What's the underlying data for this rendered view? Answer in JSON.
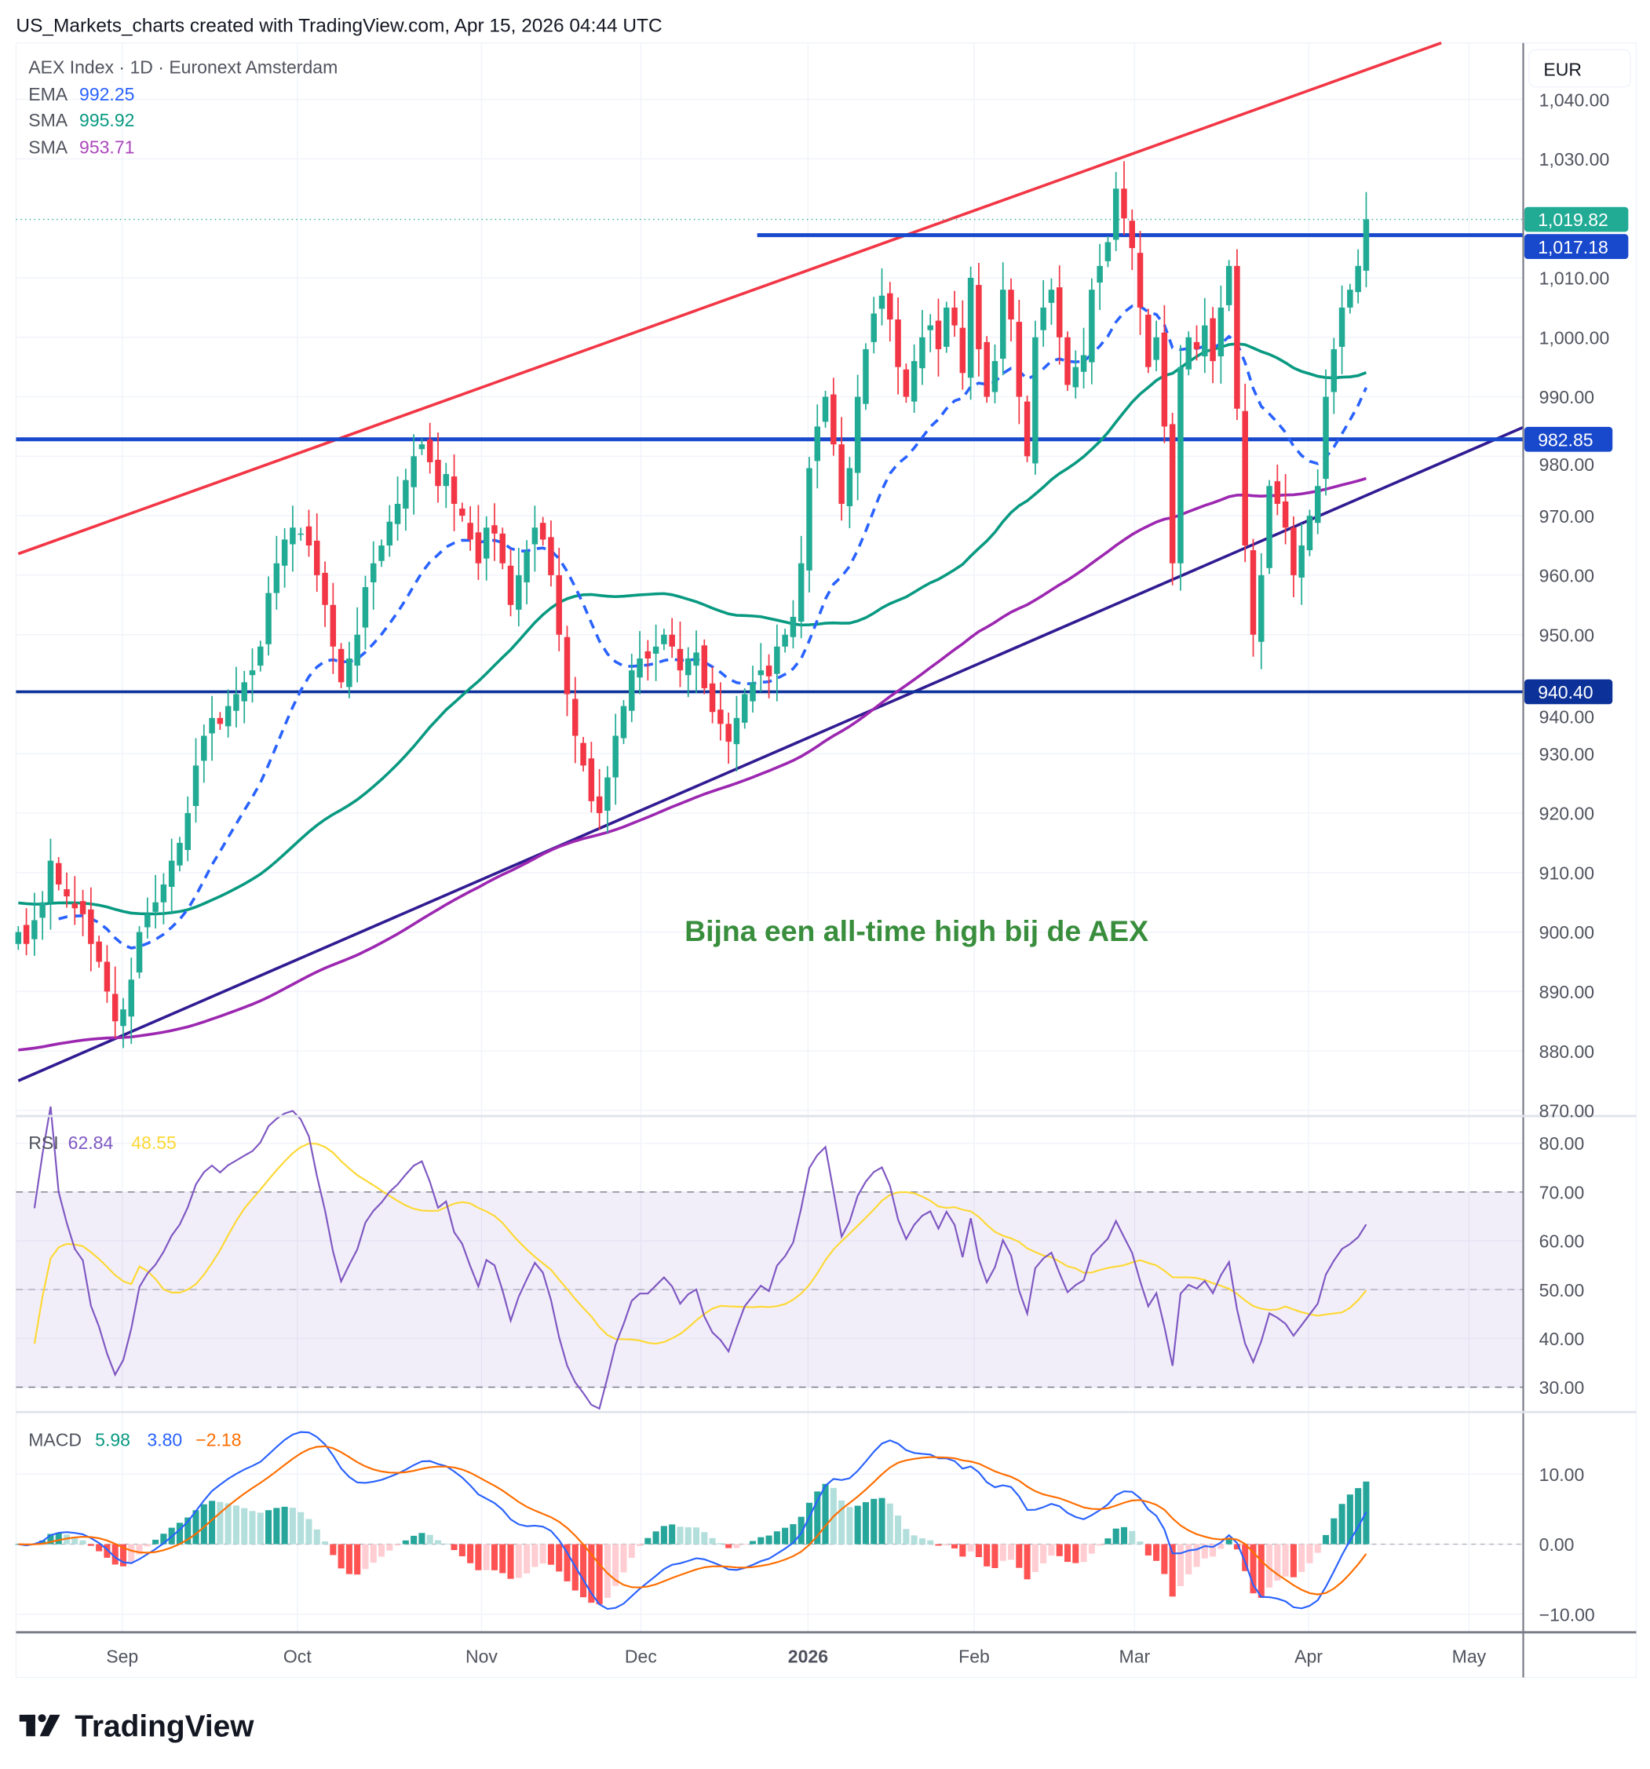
{
  "header": {
    "title": "US_Markets_charts created with TradingView.com, Apr 15, 2026 04:44 UTC"
  },
  "legend": {
    "symbol": "AEX Index · 1D · Euronext Amsterdam",
    "ema_label": "EMA",
    "ema_value": "992.25",
    "sma1_label": "SMA",
    "sma1_value": "995.92",
    "sma2_label": "SMA",
    "sma2_value": "953.71"
  },
  "currency": "EUR",
  "annotation": "Bijna een all-time high bij de AEX",
  "price_ticks": [
    "1,040.00",
    "1,030.00",
    "1,010.00",
    "1,000.00",
    "990.00",
    "980.00",
    "970.00",
    "960.00",
    "950.00",
    "940.00",
    "930.00",
    "920.00",
    "910.00",
    "900.00",
    "890.00",
    "880.00",
    "870.00"
  ],
  "price_badges": [
    {
      "label": "1,019.82",
      "value": 1019.82,
      "color": "#22ab94"
    },
    {
      "label": "1,017.18",
      "value": 1017.18,
      "color": "#1848cc"
    },
    {
      "label": "982.85",
      "value": 982.85,
      "color": "#1848cc"
    },
    {
      "label": "940.40",
      "value": 940.4,
      "color": "#0c3299"
    }
  ],
  "rsi": {
    "label": "RSI",
    "value": "62.84",
    "ma_value": "48.55",
    "ticks": [
      "80.00",
      "70.00",
      "60.00",
      "50.00",
      "40.00",
      "30.00"
    ]
  },
  "macd": {
    "label": "MACD",
    "hist_value": "5.98",
    "macd_value": "3.80",
    "signal_value": "−2.18",
    "ticks": [
      "10.00",
      "0.00",
      "−10.00"
    ]
  },
  "time_labels": [
    "Sep",
    "Oct",
    "Nov",
    "Dec",
    "2026",
    "Feb",
    "Mar",
    "Apr",
    "May"
  ],
  "logo": "TradingView",
  "colors": {
    "up": "#22ab94",
    "down": "#f23645",
    "ema": "#2962ff",
    "sma1": "#089981",
    "sma2": "#9c27b0",
    "rsi": "#7e57c2",
    "rsi_ma": "#fdd835",
    "macd": "#2962ff",
    "signal": "#ff6d00",
    "annotation": "#388e3c"
  },
  "chart_data": {
    "type": "candlestick",
    "symbol": "AEX Index",
    "interval": "1D",
    "ylim": [
      870,
      1045
    ],
    "closes": [
      900,
      898,
      902,
      905,
      912,
      908,
      906,
      904,
      903,
      898,
      895,
      890,
      885,
      887,
      892,
      900,
      903,
      905,
      908,
      912,
      915,
      920,
      928,
      933,
      936,
      935,
      938,
      940,
      942,
      944,
      948,
      957,
      962,
      966,
      968,
      967,
      965,
      960,
      955,
      948,
      942,
      946,
      950,
      958,
      962,
      965,
      969,
      972,
      976,
      980,
      982,
      979,
      975,
      977,
      972,
      970,
      966,
      962,
      968,
      967,
      962,
      955,
      960,
      964,
      968,
      966,
      960,
      950,
      940,
      933,
      928,
      922,
      920,
      926,
      933,
      938,
      944,
      946,
      946,
      948,
      950,
      948,
      944,
      946,
      947,
      941,
      937,
      935,
      932,
      936,
      940,
      942,
      944,
      943,
      948,
      950,
      953,
      962,
      978,
      985,
      990,
      982,
      972,
      978,
      990,
      998,
      1004,
      1007,
      1003,
      995,
      990,
      996,
      1000,
      1002,
      998,
      1005,
      1002,
      994,
      1010,
      998,
      990,
      996,
      1008,
      1003,
      990,
      980,
      1000,
      1005,
      1008,
      1000,
      992,
      995,
      997,
      1008,
      1012,
      1016,
      1025,
      1020,
      1015,
      1005,
      995,
      1000,
      985,
      962,
      995,
      1000,
      998,
      1002,
      996,
      1005,
      1012,
      988,
      965,
      950,
      960,
      975,
      972,
      968,
      960,
      965,
      970,
      975,
      990,
      998,
      1005,
      1008,
      1012,
      1019.82
    ],
    "horizontal_lines": [
      1017.18,
      982.85,
      940.4
    ],
    "trendlines": [
      {
        "name": "resistance",
        "color": "#f23645",
        "from": [
          0,
          963.6
        ],
        "to": [
          176.3,
          1049.5
        ]
      },
      {
        "name": "support",
        "color": "#311b92",
        "from": [
          0,
          875.0
        ],
        "to": [
          186.5,
          984.9
        ]
      }
    ],
    "indicators": [
      "EMA 20",
      "SMA 50",
      "SMA 200",
      "RSI 14",
      "MACD 12 26 9"
    ]
  }
}
